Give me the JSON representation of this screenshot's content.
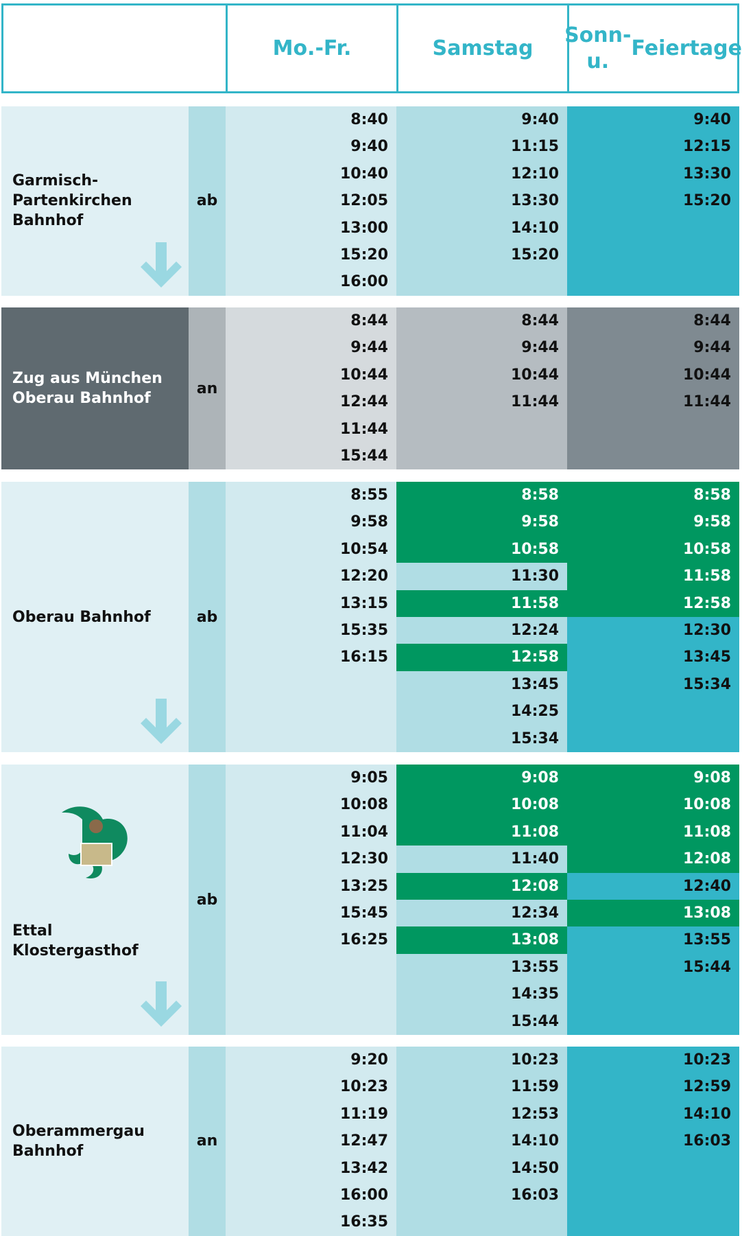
{
  "header": {
    "columns": [
      "",
      "Mo.-Fr.",
      "Samstag",
      [
        "Sonn-u.",
        "Feiertage"
      ]
    ]
  },
  "sections": [
    {
      "name": [
        "Garmisch-",
        "Partenkirchen",
        "Bahnhof"
      ],
      "direction": "ab",
      "mofr": [
        "8:40",
        "9:40",
        "10:40",
        "12:05",
        "13:00",
        "15:20",
        "16:00"
      ],
      "samstag": [
        "9:40",
        "11:15",
        "12:10",
        "13:30",
        "14:10",
        "15:20"
      ],
      "sonntag": [
        "9:40",
        "12:15",
        "13:30",
        "15:20"
      ]
    },
    {
      "name": [
        "Zug aus München",
        "Oberau Bahnhof"
      ],
      "direction": "an",
      "mofr": [
        "8:44",
        "9:44",
        "10:44",
        "12:44",
        "11:44",
        "15:44"
      ],
      "samstag": [
        "8:44",
        "9:44",
        "10:44",
        "11:44"
      ],
      "sonntag": [
        "8:44",
        "9:44",
        "10:44",
        "11:44"
      ]
    },
    {
      "name": [
        "Oberau Bahnhof"
      ],
      "direction": "ab",
      "mofr": [
        "8:55",
        "9:58",
        "10:54",
        "12:20",
        "13:15",
        "15:35",
        "16:15"
      ],
      "samstag": [
        "8:58",
        "9:58",
        "10:58",
        "11:30",
        "11:58",
        "12:24",
        "12:58",
        "13:45",
        "14:25",
        "15:34"
      ],
      "sonntag": [
        "8:58",
        "9:58",
        "10:58",
        "11:58",
        "12:58",
        "12:30",
        "13:45",
        "15:34"
      ]
    },
    {
      "name": [
        "Ettal",
        "Klostergasthof"
      ],
      "direction": "ab",
      "mofr": [
        "9:05",
        "10:08",
        "11:04",
        "12:30",
        "13:25",
        "15:45",
        "16:25"
      ],
      "samstag": [
        "9:08",
        "10:08",
        "11:08",
        "11:40",
        "12:08",
        "12:34",
        "13:08",
        "13:55",
        "14:35",
        "15:44"
      ],
      "sonntag": [
        "9:08",
        "10:08",
        "11:08",
        "12:08",
        "12:40",
        "13:08",
        "13:55",
        "15:44"
      ]
    },
    {
      "name": [
        "Oberammergau",
        "Bahnhof"
      ],
      "direction": "an",
      "mofr": [
        "9:20",
        "10:23",
        "11:19",
        "12:47",
        "13:42",
        "16:00",
        "16:35"
      ],
      "samstag": [
        "10:23",
        "11:59",
        "12:53",
        "14:10",
        "14:50",
        "16:03"
      ],
      "sonntag": [
        "10:23",
        "12:59",
        "14:10",
        "16:03"
      ]
    }
  ]
}
